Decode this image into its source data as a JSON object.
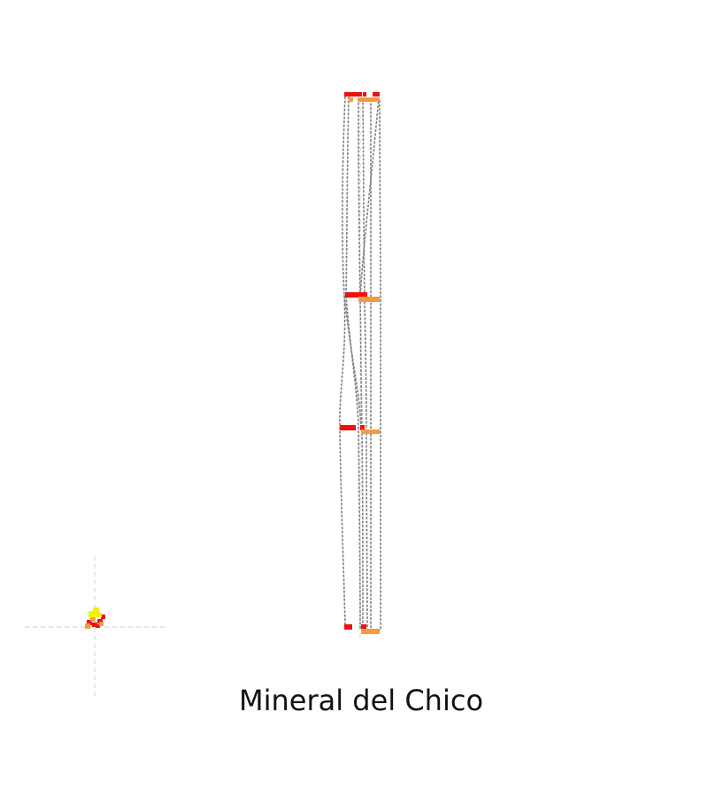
{
  "caption": "Mineral del Chico",
  "colors": {
    "red": "#ee1111",
    "orange": "#f59b3b",
    "yellow": "#f4f000",
    "line": "#808080",
    "guide": "#d0d0d0"
  }
}
